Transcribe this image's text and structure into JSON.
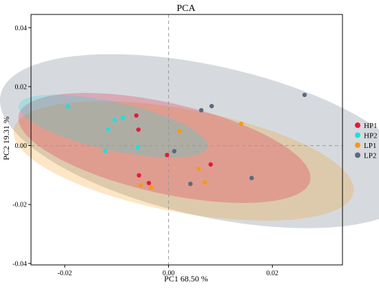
{
  "chart_data": {
    "type": "scatter",
    "title": "PCA",
    "xlabel": "PC1 68.50 %",
    "ylabel": "PC2 19.31 %",
    "xlim": [
      -0.0265,
      0.0335
    ],
    "ylim": [
      -0.0405,
      0.0445
    ],
    "xticks": [
      -0.02,
      0.0,
      0.02
    ],
    "xtick_labels": [
      "-0.02",
      "0.00",
      "0.02"
    ],
    "yticks": [
      -0.04,
      -0.02,
      0.0,
      0.02,
      0.04
    ],
    "ytick_labels": [
      "-0.04",
      "-0.02",
      "0.00",
      "0.02",
      "0.04"
    ],
    "reference_lines": {
      "x": 0,
      "y": 0,
      "style": "dashed"
    },
    "grid": false,
    "legend_position": "right",
    "series": [
      {
        "name": "HP1",
        "color": "#e8193c",
        "points": [
          [
            -0.0062,
            0.0102
          ],
          [
            -0.0058,
            0.0054
          ],
          [
            -0.0057,
            -0.0101
          ],
          [
            -0.0038,
            -0.0127
          ],
          [
            -0.0003,
            -0.0032
          ],
          [
            0.0081,
            -0.0064
          ]
        ],
        "ellipse": {
          "center": [
            -0.0008,
            -0.0008
          ],
          "semi_axes": [
            0.0145,
            0.0305
          ],
          "angle_deg": 64
        }
      },
      {
        "name": "HP2",
        "color": "#1de0e0",
        "points": [
          [
            -0.0194,
            0.0133
          ],
          [
            -0.0104,
            0.0087
          ],
          [
            -0.0088,
            0.0095
          ],
          [
            -0.0116,
            0.0055
          ],
          [
            -0.0122,
            -0.0018
          ],
          [
            -0.0059,
            -0.0006
          ]
        ],
        "ellipse": {
          "center": [
            -0.0107,
            0.0066
          ],
          "semi_axes": [
            0.0078,
            0.0196
          ],
          "angle_deg": 66
        }
      },
      {
        "name": "LP1",
        "color": "#f59a18",
        "points": [
          [
            -0.0054,
            -0.0135
          ],
          [
            -0.0034,
            -0.0143
          ],
          [
            0.0021,
            0.005
          ],
          [
            0.0058,
            -0.0079
          ],
          [
            0.007,
            -0.0125
          ],
          [
            0.014,
            0.0074
          ]
        ],
        "ellipse": {
          "center": [
            0.0029,
            -0.0052
          ],
          "semi_axes": [
            0.0168,
            0.0347
          ],
          "angle_deg": 68
        }
      },
      {
        "name": "LP2",
        "color": "#5a6b7c",
        "points": [
          [
            0.0011,
            -0.0019
          ],
          [
            0.0063,
            0.012
          ],
          [
            0.0083,
            0.0134
          ],
          [
            0.0042,
            -0.013
          ],
          [
            0.016,
            -0.011
          ],
          [
            0.0262,
            0.0172
          ]
        ],
        "ellipse": {
          "center": [
            0.0078,
            0.0015
          ],
          "semi_axes": [
            0.024,
            0.0438
          ],
          "angle_deg": 62
        }
      }
    ]
  }
}
